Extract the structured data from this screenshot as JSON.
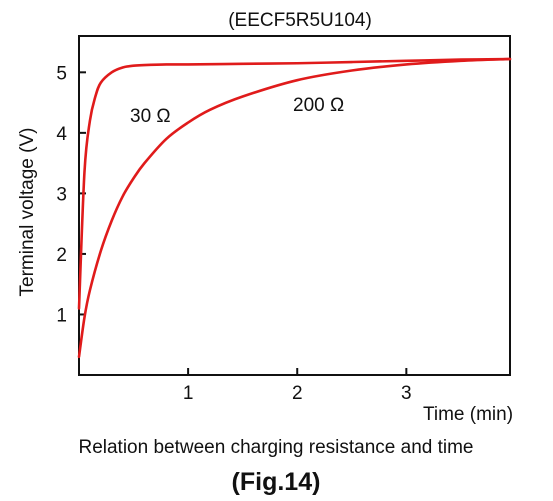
{
  "chart_data": {
    "type": "line",
    "title": "(EECF5R5U104)",
    "xlabel": "Time (min)",
    "ylabel": "Terminal voltage (V)",
    "xlim": [
      0,
      3.95
    ],
    "ylim": [
      0,
      5.6
    ],
    "x_ticks": [
      1,
      2,
      3
    ],
    "y_ticks": [
      1,
      2,
      3,
      4,
      5
    ],
    "grid": false,
    "series": [
      {
        "name": "30 Ω",
        "color": "#e01b1b",
        "x": [
          0.0,
          0.05,
          0.1,
          0.15,
          0.2,
          0.3,
          0.4,
          0.5,
          0.6,
          0.8,
          1.0,
          1.5,
          2.0,
          2.5,
          3.0,
          3.5,
          3.95
        ],
        "y": [
          1.1,
          3.35,
          4.2,
          4.6,
          4.83,
          5.0,
          5.08,
          5.11,
          5.12,
          5.13,
          5.13,
          5.14,
          5.15,
          5.17,
          5.19,
          5.21,
          5.22
        ]
      },
      {
        "name": "200 Ω",
        "color": "#e01b1b",
        "x": [
          0.0,
          0.05,
          0.1,
          0.2,
          0.3,
          0.4,
          0.5,
          0.6,
          0.8,
          1.0,
          1.2,
          1.5,
          2.0,
          2.5,
          3.0,
          3.5,
          3.95
        ],
        "y": [
          0.3,
          0.95,
          1.4,
          2.05,
          2.55,
          2.95,
          3.25,
          3.5,
          3.9,
          4.17,
          4.38,
          4.6,
          4.87,
          5.03,
          5.13,
          5.19,
          5.22
        ]
      }
    ]
  },
  "caption": "Relation between charging resistance and time",
  "figure_label": "(Fig.14)"
}
